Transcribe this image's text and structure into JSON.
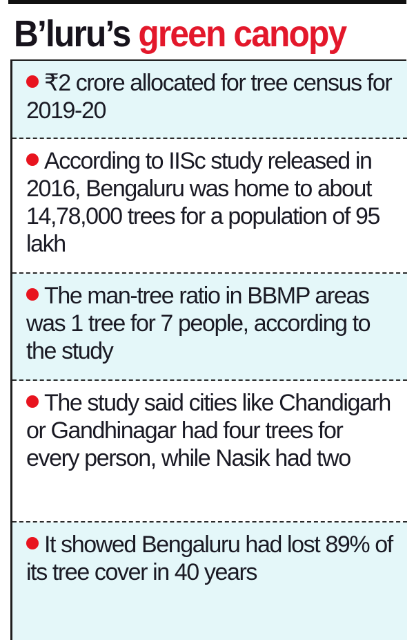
{
  "headline": {
    "prefix": "B’luru’s",
    "highlight": "green canopy"
  },
  "colors": {
    "headline_dark": "#17131c",
    "headline_red": "#e3182b",
    "bullet_red": "#e8141f",
    "tint_background": "#e4f7f9"
  },
  "items": [
    {
      "text": "₹2 crore allocated for tree census for 2019-20"
    },
    {
      "text": "According to IISc study released in 2016, Bengaluru was home to about 14,78,000 trees for a population of 95 lakh"
    },
    {
      "text": "The man-tree ratio in BBMP areas was 1 tree for 7 people, according to the study"
    },
    {
      "text": "The study said cities like Chandigarh or Gandhinagar had four trees for every person, while Nasik had two"
    },
    {
      "text": "It showed Bengaluru had lost 89% of its tree cover in 40 years"
    }
  ]
}
